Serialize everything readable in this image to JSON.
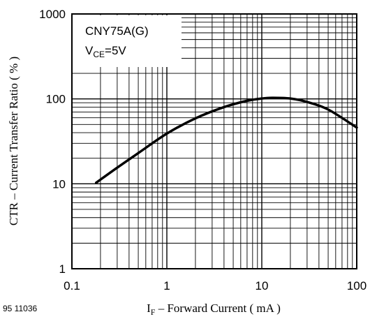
{
  "figure_id": "95 11036",
  "chart_data": {
    "type": "line",
    "x_scale": "log",
    "y_scale": "log",
    "xlim": [
      0.1,
      100
    ],
    "ylim": [
      1,
      1000
    ],
    "grid": true,
    "xlabel": {
      "main": "I",
      "sub": "F",
      "rest": " – Forward Current ( mA )"
    },
    "ylabel": "CTR – Current Transfer Ratio ( % )",
    "x_ticks": [
      "0.1",
      "1",
      "10",
      "100"
    ],
    "y_ticks": [
      "1000",
      "100",
      "10",
      "1"
    ],
    "legend": {
      "line1": "CNY75A(G)",
      "line2": {
        "main": "V",
        "sub": "CE",
        "rest": "=5V"
      },
      "placement": "top-left"
    },
    "series": [
      {
        "x": [
          0.18,
          0.3,
          0.5,
          1,
          2,
          4,
          7,
          10,
          13,
          20,
          30,
          50,
          100
        ],
        "y": [
          10.3,
          15.5,
          23,
          39,
          59,
          80,
          95,
          101,
          103,
          101,
          92,
          75,
          46
        ]
      }
    ]
  }
}
